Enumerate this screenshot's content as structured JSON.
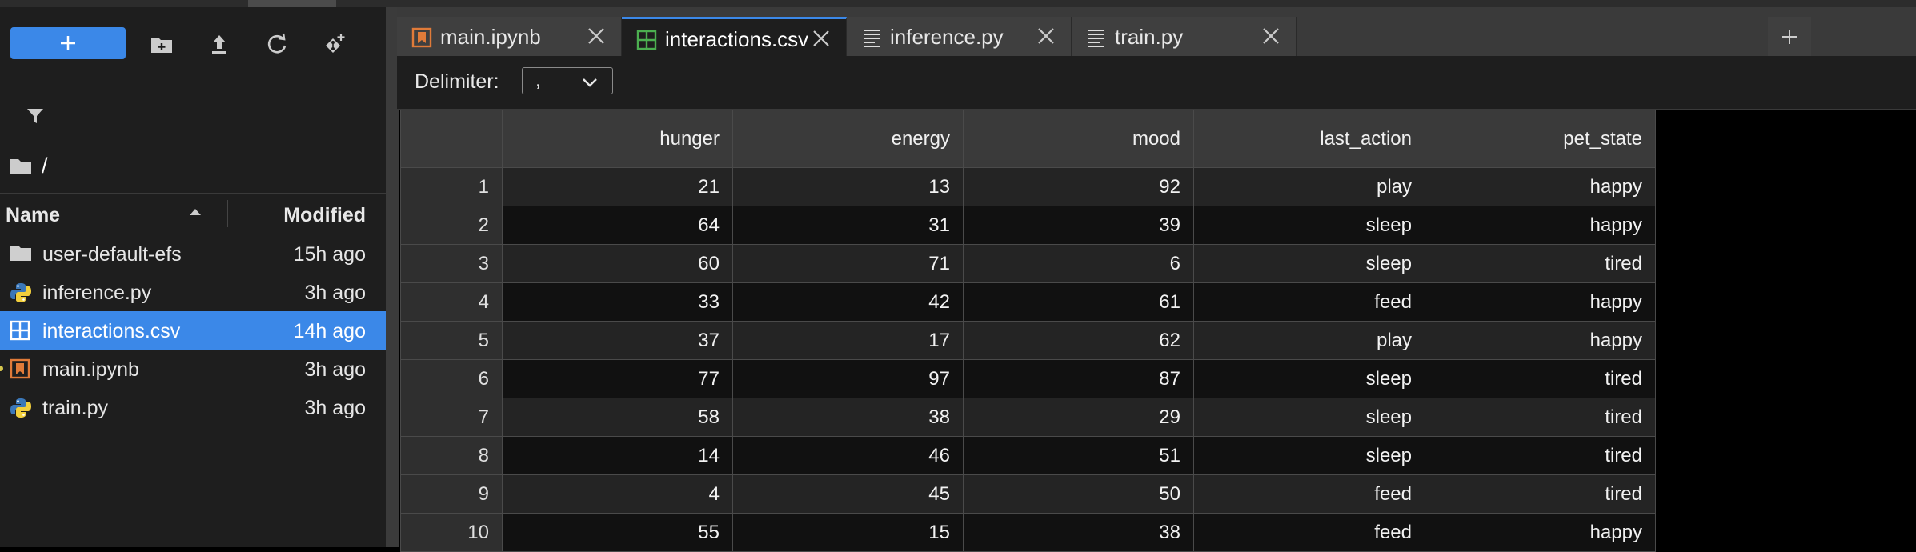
{
  "sidebar": {
    "breadcrumb": "/",
    "columns": {
      "name": "Name",
      "modified": "Modified"
    },
    "files": [
      {
        "name": "user-default-efs",
        "modified": "15h ago",
        "icon": "folder-icon"
      },
      {
        "name": "inference.py",
        "modified": "3h ago",
        "icon": "python-icon"
      },
      {
        "name": "interactions.csv",
        "modified": "14h ago",
        "icon": "spreadsheet-icon",
        "selected": true
      },
      {
        "name": "main.ipynb",
        "modified": "3h ago",
        "icon": "notebook-icon",
        "running": true
      },
      {
        "name": "train.py",
        "modified": "3h ago",
        "icon": "python-icon"
      }
    ]
  },
  "tabs": [
    {
      "label": "main.ipynb",
      "icon": "notebook-icon",
      "active": false
    },
    {
      "label": "interactions.csv",
      "icon": "spreadsheet-icon",
      "active": true
    },
    {
      "label": "inference.py",
      "icon": "text-file-icon",
      "active": false
    },
    {
      "label": "train.py",
      "icon": "text-file-icon",
      "active": false
    }
  ],
  "delimiter": {
    "label": "Delimiter:",
    "value": ","
  },
  "table": {
    "headers": [
      "hunger",
      "energy",
      "mood",
      "last_action",
      "pet_state"
    ],
    "rows": [
      [
        "1",
        "21",
        "13",
        "92",
        "play",
        "happy"
      ],
      [
        "2",
        "64",
        "31",
        "39",
        "sleep",
        "happy"
      ],
      [
        "3",
        "60",
        "71",
        "6",
        "sleep",
        "tired"
      ],
      [
        "4",
        "33",
        "42",
        "61",
        "feed",
        "happy"
      ],
      [
        "5",
        "37",
        "17",
        "62",
        "play",
        "happy"
      ],
      [
        "6",
        "77",
        "97",
        "87",
        "sleep",
        "tired"
      ],
      [
        "7",
        "58",
        "38",
        "29",
        "sleep",
        "tired"
      ],
      [
        "8",
        "14",
        "46",
        "51",
        "sleep",
        "tired"
      ],
      [
        "9",
        "4",
        "45",
        "50",
        "feed",
        "tired"
      ],
      [
        "10",
        "55",
        "15",
        "38",
        "feed",
        "happy"
      ]
    ]
  },
  "colors": {
    "accent": "#3b88e8",
    "notebook": "#e07b39",
    "spreadsheet": "#4caf50",
    "python_blue": "#3b77b8",
    "python_yellow": "#f2cf3c"
  }
}
